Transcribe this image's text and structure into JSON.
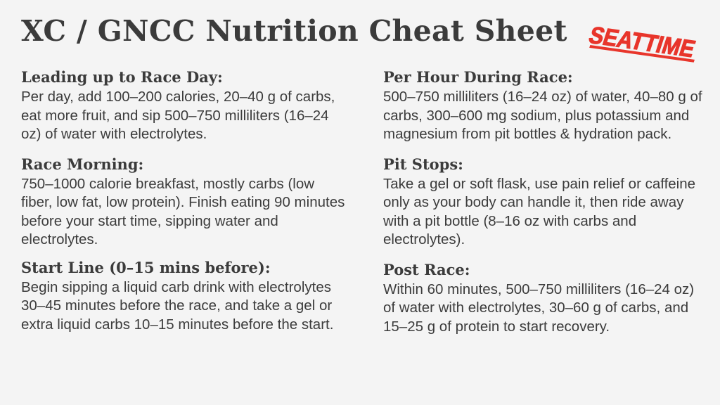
{
  "title": "XC / GNCC Nutrition Cheat Sheet",
  "logo": {
    "text": "SEATTIME",
    "color": "#e8352b"
  },
  "sections": [
    {
      "heading": "Leading up to Race Day:",
      "body": "Per day, add 100–200 calories, 20–40 g of carbs, eat more fruit, and sip 500–750 milliliters (16–24 oz) of water with electrolytes."
    },
    {
      "heading": "Race Morning:",
      "body": "750–1000 calorie breakfast, mostly carbs (low fiber, low fat, low protein). Finish eating 90 minutes before your start time, sipping water and electrolytes."
    },
    {
      "heading": "Start Line (0–15 mins before):",
      "body": "Begin sipping a liquid carb drink with electrolytes 30–45 minutes before the race, and take a gel or extra liquid carbs 10–15 minutes before the start."
    },
    {
      "heading": "Per Hour During Race:",
      "body": "500–750 milliliters (16–24 oz) of water, 40–80 g of carbs, 300–600 mg sodium, plus potassium and magnesium from pit bottles & hydration pack."
    },
    {
      "heading": "Pit Stops:",
      "body": "Take a gel or soft flask, use pain relief or caffeine only as your body can handle it, then ride away with a pit bottle (8–16 oz with carbs and electrolytes)."
    },
    {
      "heading": "Post Race:",
      "body": "Within 60 minutes, 500–750 milliliters (16–24 oz) of water with electrolytes, 30–60 g of carbs, and 15–25 g of protein to start recovery."
    }
  ]
}
